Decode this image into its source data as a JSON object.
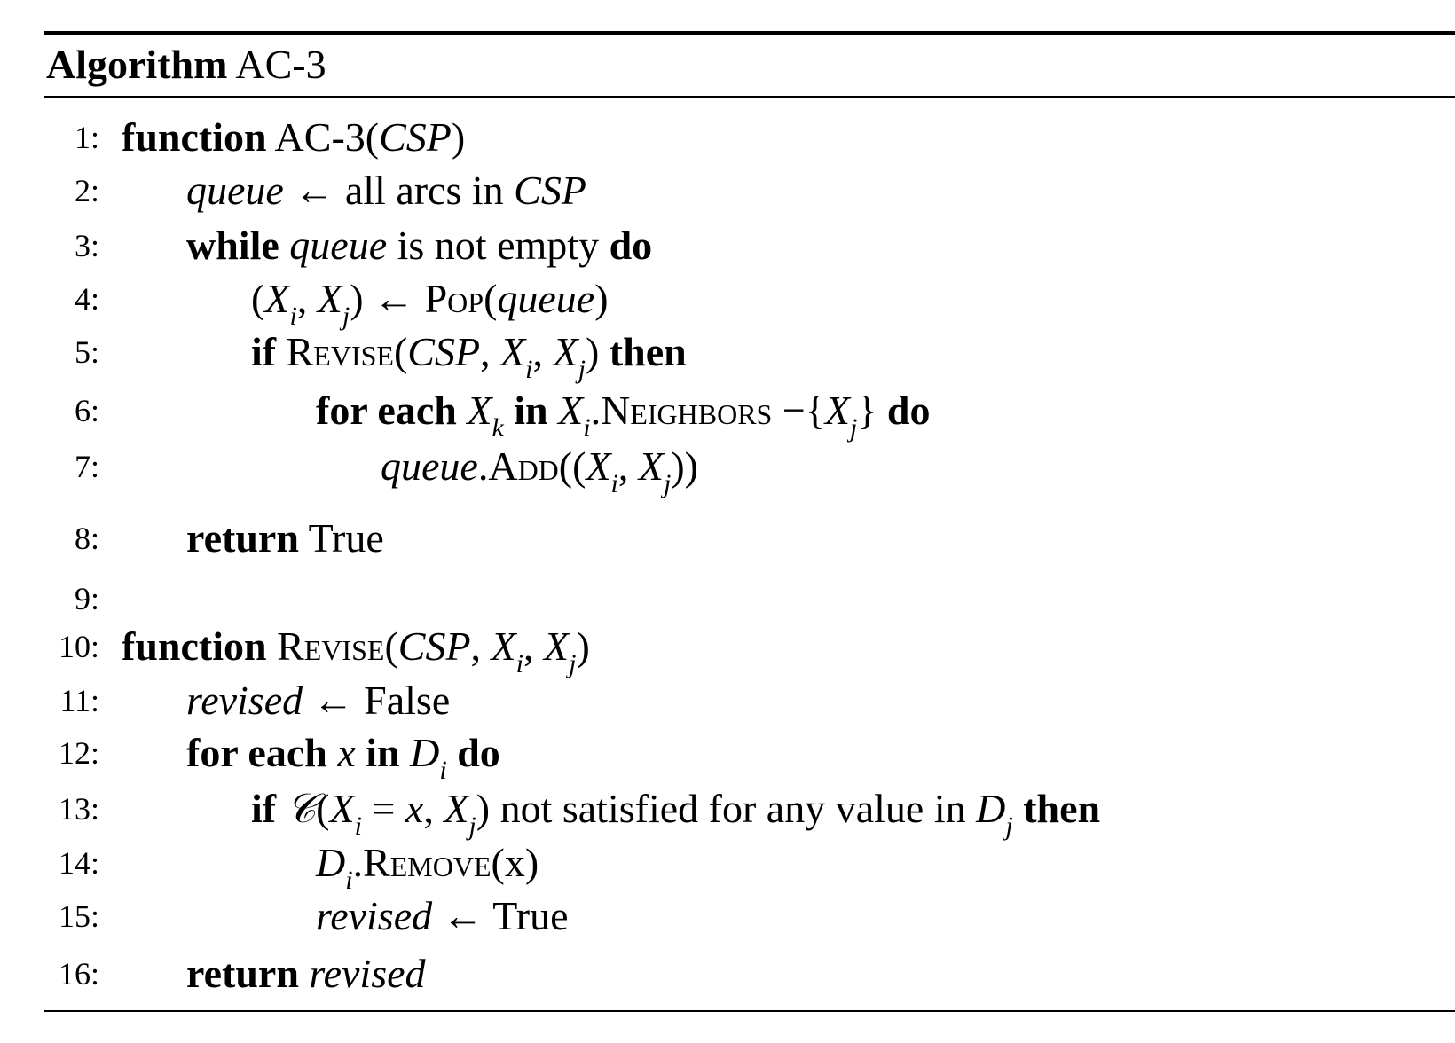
{
  "title": {
    "bold": "Algorithm",
    "name": "AC-3"
  },
  "lines": [
    {
      "num": "1:",
      "indent": 0,
      "segs": [
        {
          "t": "function",
          "s": "b"
        },
        {
          "t": " AC-3(",
          "s": "r"
        },
        {
          "t": "CSP",
          "s": "m"
        },
        {
          "t": ")",
          "s": "r"
        }
      ]
    },
    {
      "num": "2:",
      "indent": 1,
      "segs": [
        {
          "t": "queue",
          "s": "m"
        },
        {
          "t": " ← all arcs in ",
          "s": "r"
        },
        {
          "t": "CSP",
          "s": "m"
        }
      ]
    },
    {
      "num": "3:",
      "indent": 1,
      "segs": [
        {
          "t": "while",
          "s": "b"
        },
        {
          "t": " queue",
          "s": "m"
        },
        {
          "t": " is not empty ",
          "s": "r"
        },
        {
          "t": "do",
          "s": "b"
        }
      ]
    },
    {
      "num": "4:",
      "indent": 2,
      "segs": [
        {
          "t": "(",
          "s": "r"
        },
        {
          "t": "X",
          "s": "m"
        },
        {
          "t": "i",
          "s": "sub"
        },
        {
          "t": ", ",
          "s": "r"
        },
        {
          "t": "X",
          "s": "m"
        },
        {
          "t": "j",
          "s": "sub"
        },
        {
          "t": ") ← ",
          "s": "r"
        },
        {
          "t": "Pop",
          "s": "sc"
        },
        {
          "t": "(",
          "s": "r"
        },
        {
          "t": "queue",
          "s": "m"
        },
        {
          "t": ")",
          "s": "r"
        }
      ]
    },
    {
      "num": "5:",
      "indent": 2,
      "segs": [
        {
          "t": "if",
          "s": "b"
        },
        {
          "t": " ",
          "s": "r"
        },
        {
          "t": "Revise",
          "s": "sc"
        },
        {
          "t": "(",
          "s": "r"
        },
        {
          "t": "CSP",
          "s": "m"
        },
        {
          "t": ", ",
          "s": "r"
        },
        {
          "t": "X",
          "s": "m"
        },
        {
          "t": "i",
          "s": "sub"
        },
        {
          "t": ", ",
          "s": "r"
        },
        {
          "t": "X",
          "s": "m"
        },
        {
          "t": "j",
          "s": "sub"
        },
        {
          "t": ") ",
          "s": "r"
        },
        {
          "t": "then",
          "s": "b"
        }
      ]
    },
    {
      "num": "6:",
      "indent": 3,
      "segs": [
        {
          "t": "for each ",
          "s": "b"
        },
        {
          "t": "X",
          "s": "m"
        },
        {
          "t": "k",
          "s": "sub"
        },
        {
          "t": " in ",
          "s": "b"
        },
        {
          "t": "X",
          "s": "m"
        },
        {
          "t": "i",
          "s": "sub"
        },
        {
          "t": ".",
          "s": "r"
        },
        {
          "t": "Neighbors",
          "s": "sc"
        },
        {
          "t": " −{",
          "s": "r"
        },
        {
          "t": "X",
          "s": "m"
        },
        {
          "t": "j",
          "s": "sub"
        },
        {
          "t": "} ",
          "s": "r"
        },
        {
          "t": "do",
          "s": "b"
        }
      ]
    },
    {
      "num": "7:",
      "indent": 4,
      "segs": [
        {
          "t": "queue",
          "s": "m"
        },
        {
          "t": ".",
          "s": "r"
        },
        {
          "t": "Add",
          "s": "sc"
        },
        {
          "t": "((",
          "s": "r"
        },
        {
          "t": "X",
          "s": "m"
        },
        {
          "t": "i",
          "s": "sub"
        },
        {
          "t": ", ",
          "s": "r"
        },
        {
          "t": "X",
          "s": "m"
        },
        {
          "t": "j",
          "s": "sub"
        },
        {
          "t": "))",
          "s": "r"
        }
      ]
    },
    {
      "num": "8:",
      "indent": 1,
      "segs": [
        {
          "t": "return",
          "s": "b"
        },
        {
          "t": " True",
          "s": "r"
        }
      ]
    },
    {
      "num": "9:",
      "indent": 0,
      "segs": []
    },
    {
      "num": "10:",
      "indent": 0,
      "segs": [
        {
          "t": "function",
          "s": "b"
        },
        {
          "t": " ",
          "s": "r"
        },
        {
          "t": "Revise",
          "s": "sc"
        },
        {
          "t": "(",
          "s": "r"
        },
        {
          "t": "CSP",
          "s": "m"
        },
        {
          "t": ", ",
          "s": "r"
        },
        {
          "t": "X",
          "s": "m"
        },
        {
          "t": "i",
          "s": "sub"
        },
        {
          "t": ", ",
          "s": "r"
        },
        {
          "t": "X",
          "s": "m"
        },
        {
          "t": "j",
          "s": "sub"
        },
        {
          "t": ")",
          "s": "r"
        }
      ]
    },
    {
      "num": "11:",
      "indent": 1,
      "segs": [
        {
          "t": "revised",
          "s": "m"
        },
        {
          "t": " ← False",
          "s": "r"
        }
      ]
    },
    {
      "num": "12:",
      "indent": 1,
      "segs": [
        {
          "t": "for each ",
          "s": "b"
        },
        {
          "t": "x",
          "s": "m"
        },
        {
          "t": " in ",
          "s": "b"
        },
        {
          "t": "D",
          "s": "m"
        },
        {
          "t": "i",
          "s": "sub"
        },
        {
          "t": " do",
          "s": "b"
        }
      ]
    },
    {
      "num": "13:",
      "indent": 2,
      "segs": [
        {
          "t": "if ",
          "s": "b"
        },
        {
          "t": "𝒞",
          "s": "m"
        },
        {
          "t": "(",
          "s": "r"
        },
        {
          "t": "X",
          "s": "m"
        },
        {
          "t": "i",
          "s": "sub"
        },
        {
          "t": " = ",
          "s": "r"
        },
        {
          "t": "x",
          "s": "m"
        },
        {
          "t": ", ",
          "s": "r"
        },
        {
          "t": "X",
          "s": "m"
        },
        {
          "t": "j",
          "s": "sub"
        },
        {
          "t": ") not satisfied for any value in ",
          "s": "r"
        },
        {
          "t": "D",
          "s": "m"
        },
        {
          "t": "j",
          "s": "sub"
        },
        {
          "t": " then",
          "s": "b"
        }
      ]
    },
    {
      "num": "14:",
      "indent": 3,
      "segs": [
        {
          "t": "D",
          "s": "m"
        },
        {
          "t": "i",
          "s": "sub"
        },
        {
          "t": ".",
          "s": "r"
        },
        {
          "t": "Remove",
          "s": "sc"
        },
        {
          "t": "(x)",
          "s": "r"
        }
      ]
    },
    {
      "num": "15:",
      "indent": 3,
      "segs": [
        {
          "t": "revised",
          "s": "m"
        },
        {
          "t": " ← True",
          "s": "r"
        }
      ]
    },
    {
      "num": "16:",
      "indent": 1,
      "segs": [
        {
          "t": "return ",
          "s": "b"
        },
        {
          "t": "revised",
          "s": "m"
        }
      ]
    }
  ]
}
